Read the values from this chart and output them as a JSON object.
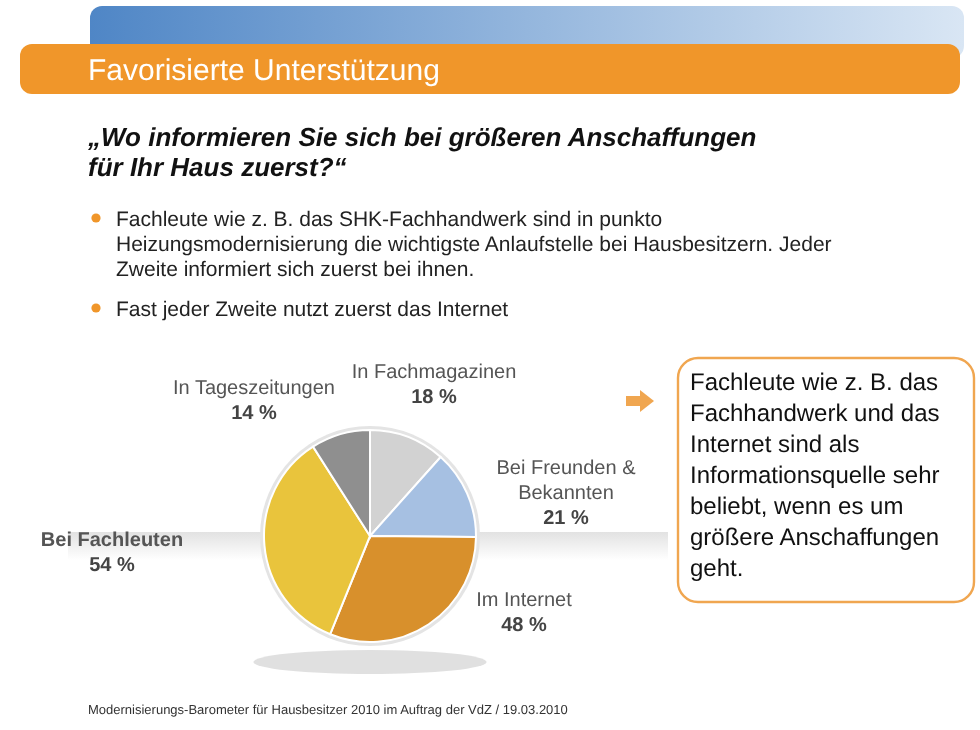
{
  "chart_data": {
    "type": "pie",
    "title": "Favorisierte Unterstützung",
    "subtitle": "„Wo informieren Sie sich bei größeren Anschaffungen für Ihr Haus zuerst?“",
    "categories": [
      "In Fachmagazinen",
      "Bei Freunden & Bekannten",
      "Im Internet",
      "Bei Fachleuten",
      "In Tageszeitungen"
    ],
    "values": [
      18,
      21,
      48,
      54,
      14
    ],
    "value_labels": [
      "18 %",
      "21 %",
      "48 %",
      "54 %",
      "14 %"
    ],
    "colors": [
      "#d2d2d2",
      "#a6c0e2",
      "#d8902c",
      "#e9c43c",
      "#8f8f8f"
    ],
    "annotations": [
      "Fachleute wie z. B. das SHK-Fachhandwerk sind in punkto Heizungsmodernisierung die wichtigste Anlaufstelle bei Hausbesitzern. Jeder Zweite informiert sich zuerst bei ihnen.",
      "Fast jeder Zweite nutzt zuerst das Internet",
      "Fachleute wie z. B. das Fachhandwerk und das Internet sind als Informationsquelle sehr beliebt, wenn es um größere Anschaffungen geht.",
      "Modernisierungs-Barometer für Hausbesitzer 2010 im Auftrag der VdZ / 19.03.2010"
    ]
  }
}
